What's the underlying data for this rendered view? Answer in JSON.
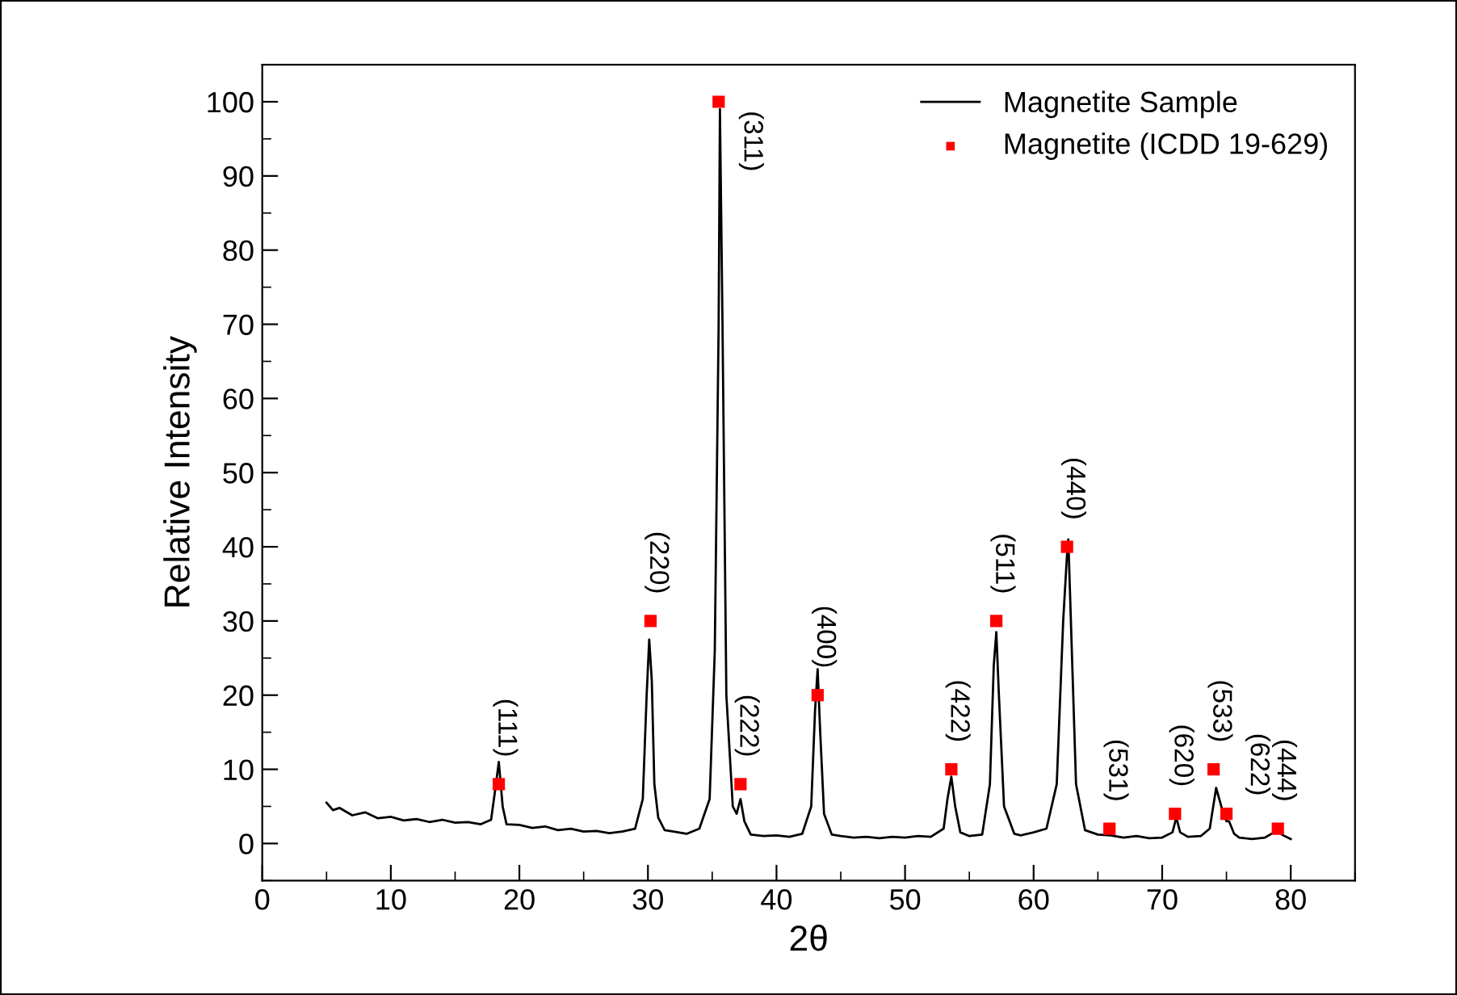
{
  "chart_data": {
    "type": "line",
    "xlabel": "2θ",
    "ylabel": "Relative Intensity",
    "xlim": [
      0,
      85
    ],
    "ylim": [
      -5,
      105
    ],
    "xticks": [
      0,
      10,
      20,
      30,
      40,
      50,
      60,
      70,
      80
    ],
    "yticks": [
      0,
      10,
      20,
      30,
      40,
      50,
      60,
      70,
      80,
      90,
      100
    ],
    "grid": false,
    "legend": "top right",
    "series": [
      {
        "name": "Magnetite Sample",
        "color": "#000000",
        "marker": "none",
        "x": [
          5,
          5.5,
          6,
          7,
          8,
          9,
          10,
          11,
          12,
          13,
          14,
          15,
          16,
          17,
          17.8,
          18.1,
          18.4,
          18.7,
          19,
          20,
          21,
          22,
          23,
          24,
          25,
          26,
          27,
          28,
          29,
          29.6,
          29.9,
          30.1,
          30.3,
          30.5,
          30.8,
          31.3,
          32,
          33,
          34,
          34.8,
          35.2,
          35.5,
          35.6,
          35.8,
          36.1,
          36.6,
          36.9,
          37.2,
          37.5,
          38,
          39,
          40,
          41,
          42,
          42.7,
          43,
          43.2,
          43.4,
          43.7,
          44.3,
          45,
          46,
          47,
          48,
          49,
          50,
          51,
          52,
          53,
          53.3,
          53.6,
          53.9,
          54.3,
          55,
          56,
          56.6,
          56.9,
          57.1,
          57.3,
          57.7,
          58.5,
          59,
          60,
          61,
          61.8,
          62.3,
          62.6,
          62.7,
          62.9,
          63.3,
          64,
          65,
          66,
          67,
          68,
          69,
          70,
          70.8,
          71.1,
          71.4,
          72,
          73,
          73.7,
          74.2,
          74.6,
          75,
          75.2,
          75.6,
          76,
          77,
          78,
          78.7,
          79,
          79.3,
          80
        ],
        "values": [
          5.5,
          4.5,
          4.8,
          3.8,
          4.2,
          3.4,
          3.6,
          3.1,
          3.3,
          2.9,
          3.2,
          2.8,
          2.9,
          2.6,
          3.2,
          7,
          11,
          5,
          2.6,
          2.5,
          2.1,
          2.3,
          1.8,
          2,
          1.6,
          1.7,
          1.4,
          1.6,
          2,
          6,
          20,
          27.5,
          22,
          8,
          3.5,
          1.8,
          1.6,
          1.3,
          2,
          6,
          26,
          70,
          99,
          70,
          20,
          5,
          4,
          6,
          3,
          1.2,
          1,
          1.1,
          0.9,
          1.3,
          5,
          18,
          23.5,
          15,
          4,
          1.2,
          1,
          0.8,
          0.9,
          0.7,
          0.9,
          0.8,
          1,
          0.9,
          2,
          6,
          9,
          5,
          1.5,
          1,
          1.2,
          8,
          24,
          28.5,
          20,
          5,
          1.3,
          1.1,
          1.5,
          2,
          8,
          30,
          39,
          41,
          30,
          8,
          1.8,
          1.2,
          1.1,
          0.8,
          1,
          0.7,
          0.8,
          1.5,
          3.5,
          1.5,
          0.9,
          1,
          2,
          7.5,
          5,
          3,
          3,
          1.3,
          0.8,
          0.6,
          0.8,
          1.5,
          2.2,
          1.2,
          0.6
        ]
      },
      {
        "name": "Magnetite (ICDD 19-629)",
        "type": "scatter",
        "color": "#ff0000",
        "marker": "square",
        "x": [
          18.4,
          30.2,
          35.5,
          37.2,
          43.2,
          53.6,
          57.1,
          62.6,
          65.9,
          71.0,
          74.0,
          75.0,
          79.0
        ],
        "values": [
          8,
          30,
          100,
          8,
          20,
          10,
          30,
          40,
          2,
          4,
          10,
          4,
          2
        ]
      }
    ],
    "annotations": [
      {
        "text": "(111)",
        "x": 18.4,
        "y": 8
      },
      {
        "text": "(220)",
        "x": 30.2,
        "y": 30
      },
      {
        "text": "(311)",
        "x": 35.5,
        "y": 100
      },
      {
        "text": "(222)",
        "x": 37.2,
        "y": 8
      },
      {
        "text": "(400)",
        "x": 43.2,
        "y": 20
      },
      {
        "text": "(422)",
        "x": 53.6,
        "y": 10
      },
      {
        "text": "(511)",
        "x": 57.1,
        "y": 30
      },
      {
        "text": "(440)",
        "x": 62.6,
        "y": 40
      },
      {
        "text": "(531)",
        "x": 65.9,
        "y": 2
      },
      {
        "text": "(620)",
        "x": 71.0,
        "y": 4
      },
      {
        "text": "(533)",
        "x": 74.0,
        "y": 10
      },
      {
        "text": "(622)",
        "x": 75.0,
        "y": 4
      },
      {
        "text": "(444)",
        "x": 79.0,
        "y": 2
      }
    ]
  }
}
